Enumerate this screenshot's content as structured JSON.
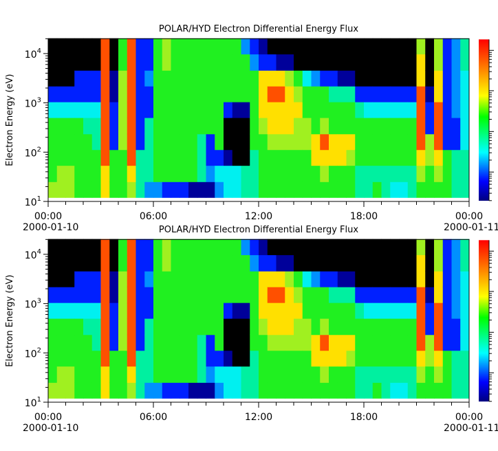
{
  "chart_data": [
    {
      "type": "heatmap",
      "title": "POLAR/HYD  Electron Differential Energy Flux",
      "xlabel": "",
      "ylabel": "Electron Energy (eV)",
      "x_tick_labels": [
        {
          "time": "00:00",
          "date": "2000-01-10"
        },
        {
          "time": "06:00",
          "date": ""
        },
        {
          "time": "12:00",
          "date": ""
        },
        {
          "time": "18:00",
          "date": ""
        },
        {
          "time": "00:00",
          "date": "2000-01-11"
        }
      ],
      "xlim_hours": [
        0,
        24
      ],
      "y_scale": "log",
      "ylim": [
        10,
        20000
      ],
      "y_tick_labels": [
        {
          "base": "10",
          "exp": "1"
        },
        {
          "base": "10",
          "exp": "2"
        },
        {
          "base": "10",
          "exp": "3"
        },
        {
          "base": "10",
          "exp": "4"
        }
      ],
      "colorbar": {
        "scale": "log",
        "colormap": [
          "#00007f",
          "#0000ff",
          "#00ffff",
          "#00ff00",
          "#ffff00",
          "#ff8000",
          "#ff0000"
        ],
        "labels": "not shown"
      },
      "no_data_color": "#000000",
      "time_bin_hours": 0.5,
      "energy_bins_log10": [
        1.08,
        1.4,
        1.73,
        2.05,
        2.37,
        2.7,
        3.02,
        3.34,
        3.66,
        3.99,
        4.31
      ],
      "level_note": "0 = no data (black), 1..9 = increasing flux level along colorbar",
      "levels": [
        "7666642000",
        "7766642000",
        "7766642000",
        "6666642200",
        "6666542200",
        "6665542200",
        "8899999999",
        "6662221100",
        "6667777766",
        "7899999999",
        "5552222222",
        "3555522322",
        "3666666666",
        "2666666677",
        "2666666666",
        "2666666666",
        "1666666666",
        "1555666666",
        "1322666666",
        "3426666666",
        "4410026666",
        "4400016666",
        "5500016663",
        "5556666632",
        "6666788821",
        "6667889820",
        "6667889810",
        "6667888710",
        "6667787600",
        "6667766400",
        "6688666300",
        "6789766200",
        "6688665200",
        "6688665100",
        "6678665100",
        "5566652000",
        "5566642000",
        "6566642000",
        "5566642000",
        "4566642000",
        "4566642000",
        "5566642000",
        "6789999887",
        "6677221000",
        "6789998877",
        "6662222222",
        "5552233333",
        "5554444455"
      ]
    },
    {
      "type": "heatmap",
      "title": "POLAR/HYD  Electron Differential Energy Flux",
      "xlabel": "",
      "ylabel": "Electron Energy (eV)",
      "x_tick_labels": [
        {
          "time": "00:00",
          "date": "2000-01-10"
        },
        {
          "time": "06:00",
          "date": ""
        },
        {
          "time": "12:00",
          "date": ""
        },
        {
          "time": "18:00",
          "date": ""
        },
        {
          "time": "00:00",
          "date": "2000-01-11"
        }
      ],
      "xlim_hours": [
        0,
        24
      ],
      "y_scale": "log",
      "ylim": [
        10,
        20000
      ],
      "y_tick_labels": [
        {
          "base": "10",
          "exp": "1"
        },
        {
          "base": "10",
          "exp": "2"
        },
        {
          "base": "10",
          "exp": "3"
        },
        {
          "base": "10",
          "exp": "4"
        }
      ],
      "colorbar": {
        "scale": "log",
        "colormap": [
          "#00007f",
          "#0000ff",
          "#00ffff",
          "#00ff00",
          "#ffff00",
          "#ff8000",
          "#ff0000"
        ],
        "labels": "not shown"
      },
      "no_data_color": "#000000",
      "time_bin_hours": 0.5,
      "energy_bins_log10": [
        1.08,
        1.4,
        1.73,
        2.05,
        2.37,
        2.7,
        3.02,
        3.34,
        3.66,
        3.99,
        4.31
      ],
      "level_note": "0 = no data (black), 1..9 = increasing flux level along colorbar",
      "levels": [
        "7666642000",
        "7766642000",
        "7766642000",
        "6666642200",
        "6666542200",
        "6665542200",
        "8899999999",
        "6662221100",
        "6667777766",
        "7899999999",
        "5552222222",
        "3555522322",
        "3666666666",
        "2666666677",
        "2666666666",
        "2666666666",
        "1666666666",
        "1555666666",
        "1322666666",
        "3426666666",
        "4410026666",
        "4400016666",
        "5500016663",
        "5556666632",
        "6666788821",
        "6667889820",
        "6667889810",
        "6667888710",
        "6667787600",
        "6667766400",
        "6688666300",
        "6789766200",
        "6688665200",
        "6688665100",
        "6678665100",
        "5566652000",
        "5566642000",
        "6566642000",
        "5566642000",
        "4566642000",
        "4566642000",
        "5566642000",
        "6789999887",
        "6677221000",
        "6789998877",
        "6662222222",
        "5552233333",
        "5554444455"
      ]
    }
  ]
}
